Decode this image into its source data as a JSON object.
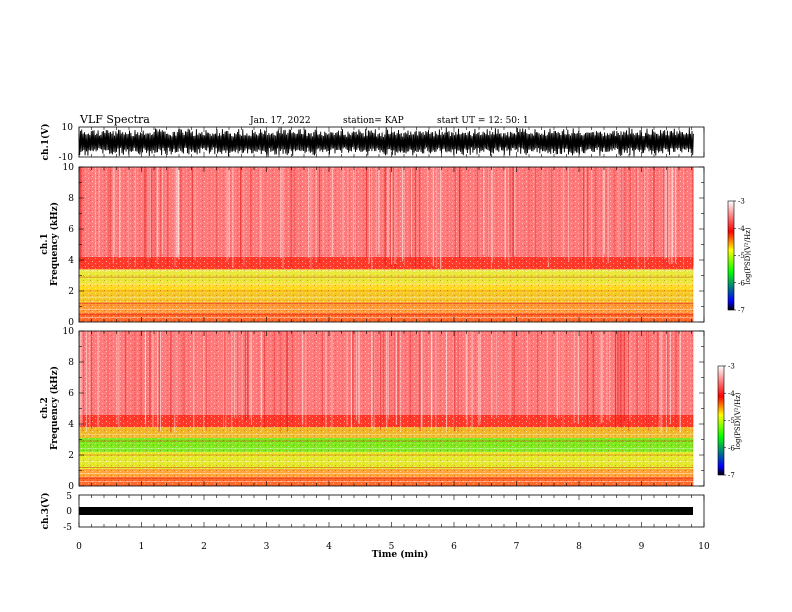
{
  "header": {
    "title": "VLF Spectra",
    "date": "Jan. 17, 2022",
    "station": "station= KAP",
    "start": "start  UT  =   12: 50: 1"
  },
  "chart_data": [
    {
      "type": "line",
      "name": "ch1-waveform",
      "ylabel": "ch.1(V)",
      "ylim": [
        -10,
        10
      ],
      "yticks": [
        "10",
        "-10"
      ],
      "xlim": [
        0,
        10
      ]
    },
    {
      "type": "heatmap",
      "name": "ch1-spectrogram",
      "ylabel_line1": "ch.1",
      "ylabel_line2": "Frequency  (kHz)",
      "ylim": [
        0,
        10
      ],
      "yticks": [
        "0",
        "2",
        "4",
        "6",
        "8",
        "10"
      ],
      "xlim": [
        0,
        10
      ],
      "data_extent_min": 9.83,
      "colorbar": {
        "label": "log(PSD)(V²/Hz)",
        "ticks": [
          "-3",
          "-4",
          "-5",
          "-6",
          "-7"
        ],
        "range": [
          -7,
          -3
        ]
      },
      "bands": [
        {
          "from_khz": 0.0,
          "to_khz": 0.6,
          "color": "#ff6a2a"
        },
        {
          "from_khz": 0.6,
          "to_khz": 1.3,
          "color": "#ff9a35"
        },
        {
          "from_khz": 1.3,
          "to_khz": 1.9,
          "color": "#f2c626"
        },
        {
          "from_khz": 1.9,
          "to_khz": 2.5,
          "color": "#ffd820"
        },
        {
          "from_khz": 2.5,
          "to_khz": 3.4,
          "color": "#e9e838"
        },
        {
          "from_khz": 3.4,
          "to_khz": 4.2,
          "color": "#ff3a2a"
        },
        {
          "from_khz": 4.2,
          "to_khz": 10.0,
          "color": "#ff7a7a"
        }
      ]
    },
    {
      "type": "heatmap",
      "name": "ch2-spectrogram",
      "ylabel_line1": "ch.2",
      "ylabel_line2": "Frequency  (kHz)",
      "ylim": [
        0,
        10
      ],
      "yticks": [
        "0",
        "2",
        "4",
        "6",
        "8",
        "10"
      ],
      "xlim": [
        0,
        10
      ],
      "data_extent_min": 9.83,
      "colorbar": {
        "label": "log(PSD)(V²/Hz)",
        "ticks": [
          "-3",
          "-4",
          "-5",
          "-6",
          "-7"
        ],
        "range": [
          -7,
          -3
        ]
      },
      "bands": [
        {
          "from_khz": 0.0,
          "to_khz": 0.6,
          "color": "#ff6a2a"
        },
        {
          "from_khz": 0.6,
          "to_khz": 1.1,
          "color": "#ffa535"
        },
        {
          "from_khz": 1.1,
          "to_khz": 2.2,
          "color": "#e3e82a"
        },
        {
          "from_khz": 2.2,
          "to_khz": 3.1,
          "color": "#7fe81e"
        },
        {
          "from_khz": 3.1,
          "to_khz": 3.8,
          "color": "#f0b828"
        },
        {
          "from_khz": 3.8,
          "to_khz": 4.6,
          "color": "#ff3a2a"
        },
        {
          "from_khz": 4.6,
          "to_khz": 10.0,
          "color": "#ff7a7a"
        }
      ]
    },
    {
      "type": "line",
      "name": "ch3-waveform",
      "ylabel": "ch.3(V)",
      "ylim": [
        -5,
        5
      ],
      "yticks": [
        "5",
        "0",
        "-5"
      ],
      "xlim": [
        0,
        10
      ],
      "xlabel": "Time  (min)",
      "xticks": [
        "0",
        "1",
        "2",
        "3",
        "4",
        "5",
        "6",
        "7",
        "8",
        "9",
        "10"
      ]
    }
  ],
  "colors": {
    "colorbar_stops": [
      "#000000",
      "#0000ff",
      "#00ff00",
      "#ffff00",
      "#ff0000",
      "#ffffff"
    ]
  }
}
